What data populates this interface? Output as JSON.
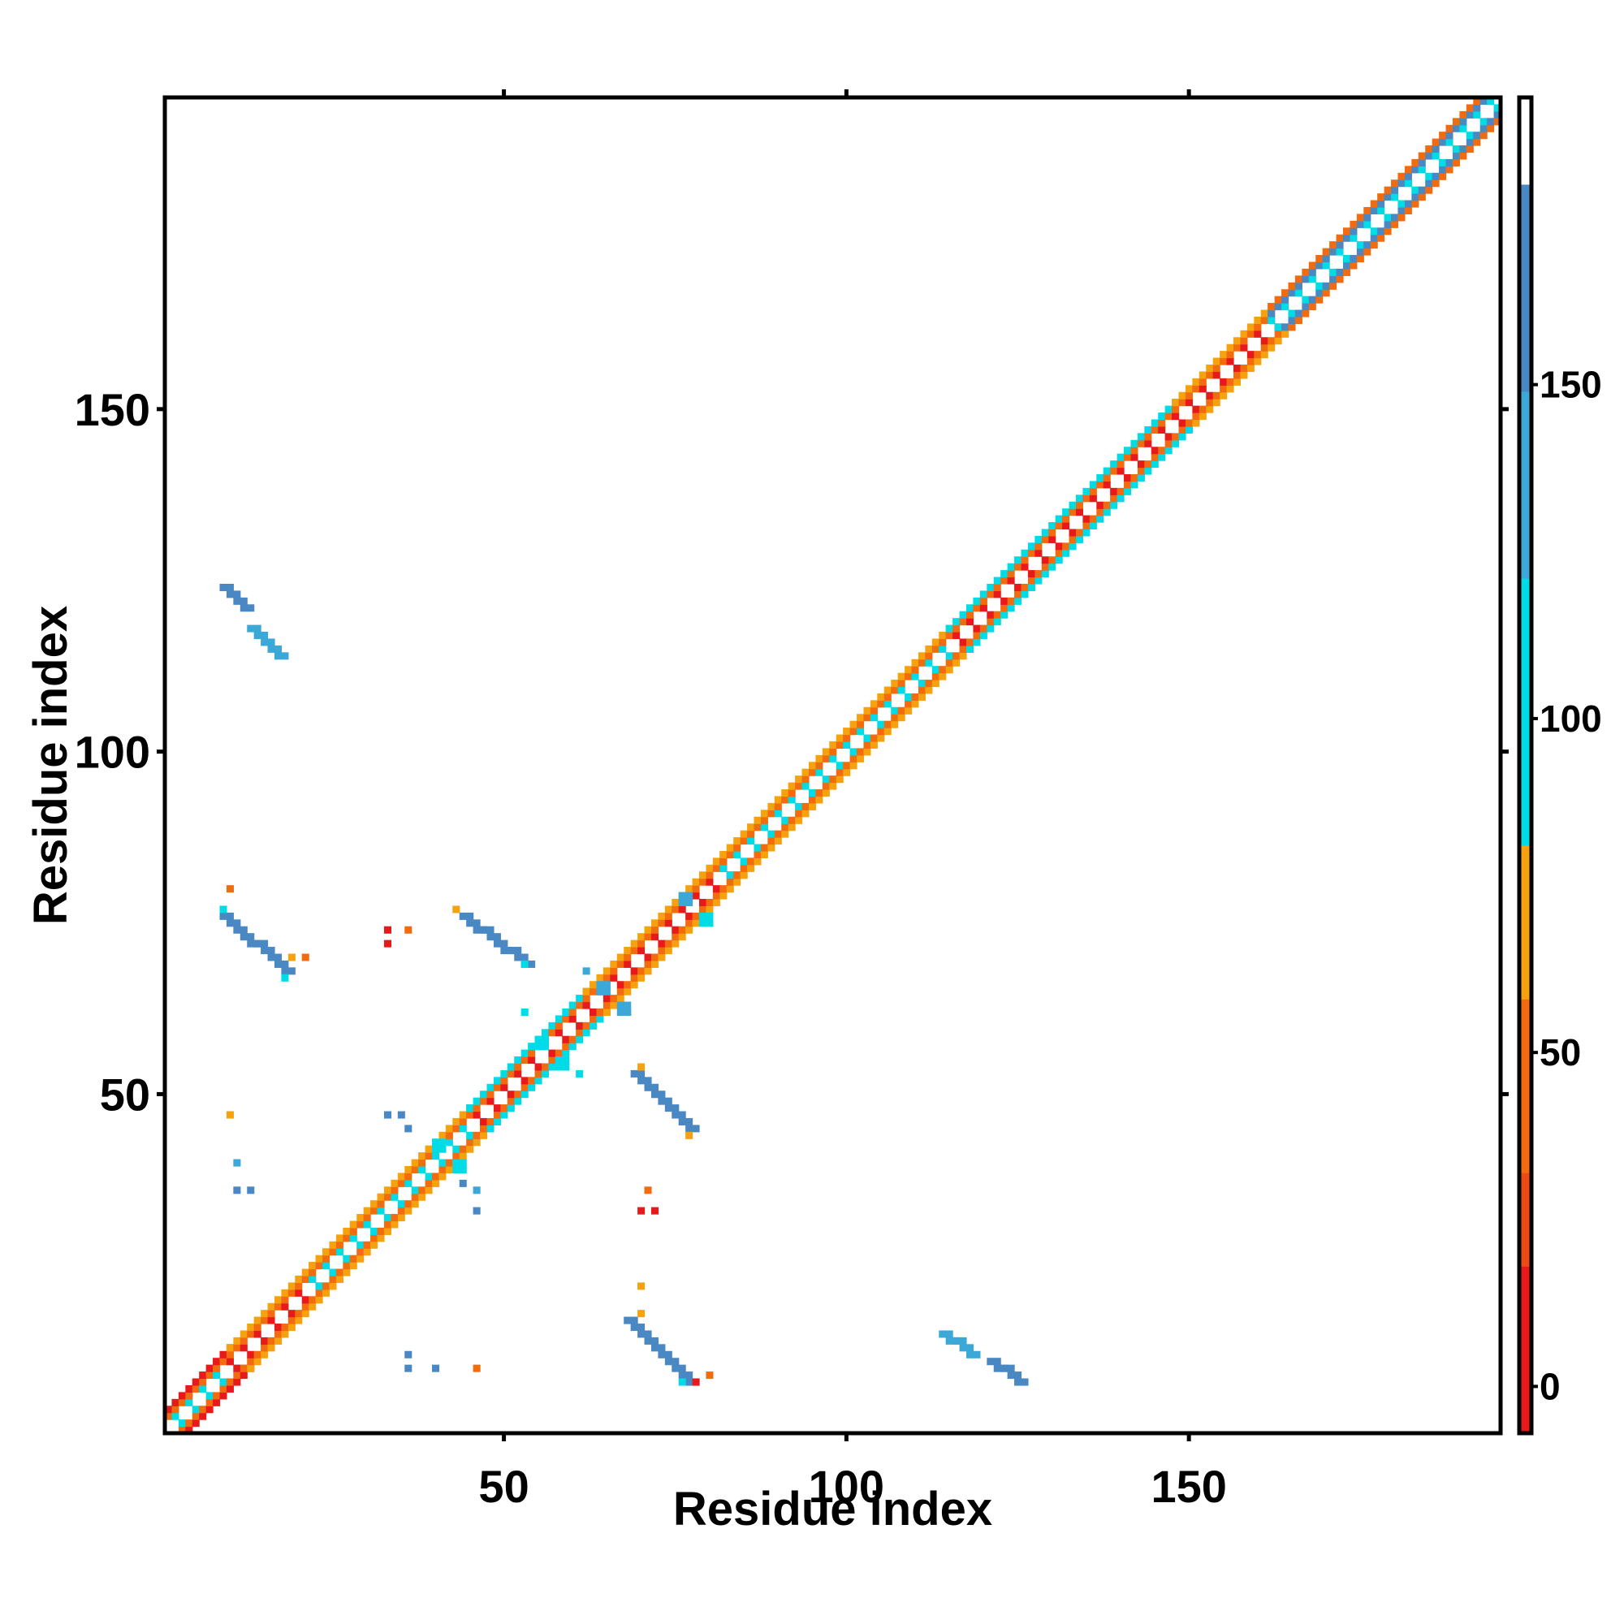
{
  "chart_data": {
    "type": "heatmap",
    "title": "",
    "xlabel": "Residue index",
    "ylabel": "Residue index",
    "x_range": [
      1,
      195
    ],
    "y_range": [
      1,
      195
    ],
    "x_ticks": [
      50,
      100,
      150
    ],
    "y_ticks": [
      50,
      100,
      150
    ],
    "grid": false,
    "legend": "colorbar-right",
    "colorbar": {
      "ticks": [
        0,
        50,
        100,
        150
      ],
      "range": [
        -7,
        193
      ],
      "bands": [
        {
          "from": -7,
          "to": 18,
          "color": "#e8191a"
        },
        {
          "from": 18,
          "to": 32,
          "color": "#ee4a15"
        },
        {
          "from": 32,
          "to": 58,
          "color": "#f26b0f"
        },
        {
          "from": 58,
          "to": 81,
          "color": "#f5a20e"
        },
        {
          "from": 81,
          "to": 121,
          "color": "#00dce6"
        },
        {
          "from": 121,
          "to": 149,
          "color": "#3ca8d8"
        },
        {
          "from": 149,
          "to": 180,
          "color": "#4a88c4"
        },
        {
          "from": 180,
          "to": 193,
          "color": "#ffffff"
        }
      ]
    },
    "palette": {
      "red": "#e8191a",
      "red_orange": "#ee4a15",
      "orange": "#f26b0f",
      "amber": "#f5a20e",
      "cyan": "#00dce6",
      "light_blue": "#3ca8d8",
      "steel_blue": "#4a88c4"
    },
    "diagonal_band_segments": [
      {
        "from": 1,
        "to": 10,
        "colors": [
          "cyan",
          "orange",
          "red"
        ]
      },
      {
        "from": 10,
        "to": 22,
        "colors": [
          "red",
          "orange",
          "amber"
        ]
      },
      {
        "from": 22,
        "to": 45,
        "colors": [
          "cyan",
          "orange",
          "amber"
        ]
      },
      {
        "from": 45,
        "to": 62,
        "colors": [
          "red",
          "orange",
          "cyan"
        ]
      },
      {
        "from": 62,
        "to": 82,
        "colors": [
          "red",
          "orange",
          "amber"
        ]
      },
      {
        "from": 82,
        "to": 115,
        "colors": [
          "cyan",
          "orange",
          "amber"
        ]
      },
      {
        "from": 115,
        "to": 148,
        "colors": [
          "red",
          "orange",
          "cyan"
        ]
      },
      {
        "from": 148,
        "to": 162,
        "colors": [
          "red",
          "orange",
          "amber"
        ]
      },
      {
        "from": 162,
        "to": 195,
        "colors": [
          "cyan",
          "steel_blue",
          "orange"
        ]
      }
    ],
    "contact_streaks": [
      {
        "x0": 9,
        "y0": 76,
        "x1": 18,
        "y1": 68,
        "color": "steel_blue"
      },
      {
        "x0": 68,
        "y0": 17,
        "x1": 77,
        "y1": 8,
        "color": "steel_blue"
      },
      {
        "x0": 44,
        "y0": 76,
        "x1": 53,
        "y1": 69,
        "color": "steel_blue"
      },
      {
        "x0": 69,
        "y0": 53,
        "x1": 77,
        "y1": 45,
        "color": "steel_blue"
      },
      {
        "x0": 9,
        "y0": 124,
        "x1": 12,
        "y1": 121,
        "color": "steel_blue"
      },
      {
        "x0": 13,
        "y0": 118,
        "x1": 17,
        "y1": 114,
        "color": "light_blue"
      },
      {
        "x0": 114,
        "y0": 15,
        "x1": 118,
        "y1": 12,
        "color": "light_blue"
      },
      {
        "x0": 121,
        "y0": 11,
        "x1": 125,
        "y1": 8,
        "color": "steel_blue"
      }
    ],
    "contact_points": [
      {
        "x": 9,
        "y": 77,
        "color": "cyan"
      },
      {
        "x": 10,
        "y": 80,
        "color": "orange"
      },
      {
        "x": 18,
        "y": 67,
        "color": "cyan"
      },
      {
        "x": 19,
        "y": 70,
        "color": "amber"
      },
      {
        "x": 21,
        "y": 70,
        "color": "orange"
      },
      {
        "x": 33,
        "y": 74,
        "color": "red"
      },
      {
        "x": 33,
        "y": 72,
        "color": "red"
      },
      {
        "x": 36,
        "y": 74,
        "color": "orange"
      },
      {
        "x": 43,
        "y": 77,
        "color": "amber"
      },
      {
        "x": 53,
        "y": 69,
        "color": "cyan"
      },
      {
        "x": 10,
        "y": 47,
        "color": "amber"
      },
      {
        "x": 11,
        "y": 40,
        "color": "light_blue"
      },
      {
        "x": 11,
        "y": 36,
        "color": "steel_blue"
      },
      {
        "x": 13,
        "y": 36,
        "color": "steel_blue"
      },
      {
        "x": 33,
        "y": 47,
        "color": "steel_blue"
      },
      {
        "x": 35,
        "y": 47,
        "color": "steel_blue"
      },
      {
        "x": 36,
        "y": 45,
        "color": "steel_blue"
      },
      {
        "x": 44,
        "y": 37,
        "color": "steel_blue"
      },
      {
        "x": 46,
        "y": 36,
        "color": "light_blue"
      },
      {
        "x": 46,
        "y": 33,
        "color": "steel_blue"
      },
      {
        "x": 53,
        "y": 62,
        "color": "cyan"
      },
      {
        "x": 61,
        "y": 53,
        "color": "cyan"
      },
      {
        "x": 62,
        "y": 68,
        "color": "light_blue"
      },
      {
        "x": 68,
        "y": 62,
        "color": "light_blue"
      },
      {
        "x": 70,
        "y": 54,
        "color": "amber"
      },
      {
        "x": 77,
        "y": 44,
        "color": "amber"
      },
      {
        "x": 71,
        "y": 36,
        "color": "orange"
      },
      {
        "x": 70,
        "y": 33,
        "color": "red"
      },
      {
        "x": 72,
        "y": 33,
        "color": "red"
      },
      {
        "x": 70,
        "y": 22,
        "color": "amber"
      },
      {
        "x": 70,
        "y": 18,
        "color": "amber"
      },
      {
        "x": 76,
        "y": 8,
        "color": "cyan"
      },
      {
        "x": 78,
        "y": 8,
        "color": "red"
      },
      {
        "x": 80,
        "y": 9,
        "color": "orange"
      },
      {
        "x": 36,
        "y": 12,
        "color": "steel_blue"
      },
      {
        "x": 36,
        "y": 10,
        "color": "steel_blue"
      },
      {
        "x": 40,
        "y": 10,
        "color": "steel_blue"
      },
      {
        "x": 46,
        "y": 10,
        "color": "orange"
      }
    ],
    "diagonal_blobs": [
      {
        "x": 64,
        "y": 66,
        "color": "light_blue"
      },
      {
        "x": 67,
        "y": 63,
        "color": "light_blue"
      },
      {
        "x": 76,
        "y": 79,
        "color": "light_blue"
      },
      {
        "x": 79,
        "y": 76,
        "color": "cyan"
      },
      {
        "x": 40,
        "y": 43,
        "color": "cyan"
      },
      {
        "x": 43,
        "y": 40,
        "color": "cyan"
      },
      {
        "x": 55,
        "y": 58,
        "color": "cyan"
      },
      {
        "x": 58,
        "y": 55,
        "color": "cyan"
      }
    ]
  }
}
